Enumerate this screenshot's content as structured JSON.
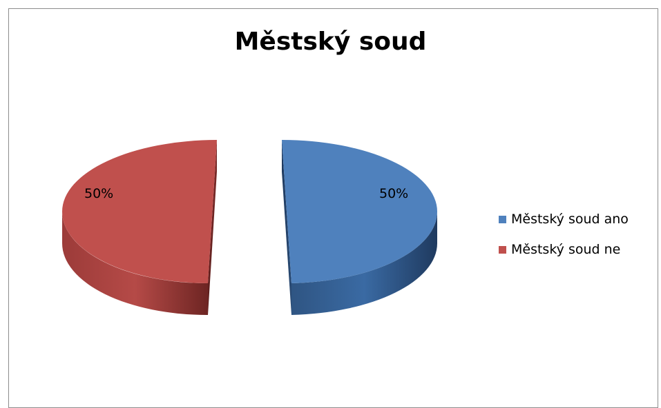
{
  "chart_data": {
    "type": "pie",
    "title": "Městský soud",
    "categories": [
      "Městský soud ano",
      "Městský soud ne"
    ],
    "values": [
      50,
      50
    ],
    "data_labels": [
      "50%",
      "50%"
    ],
    "colors": [
      "#4f81bd",
      "#c0504d"
    ],
    "style": "3d-exploded",
    "legend_position": "right"
  }
}
